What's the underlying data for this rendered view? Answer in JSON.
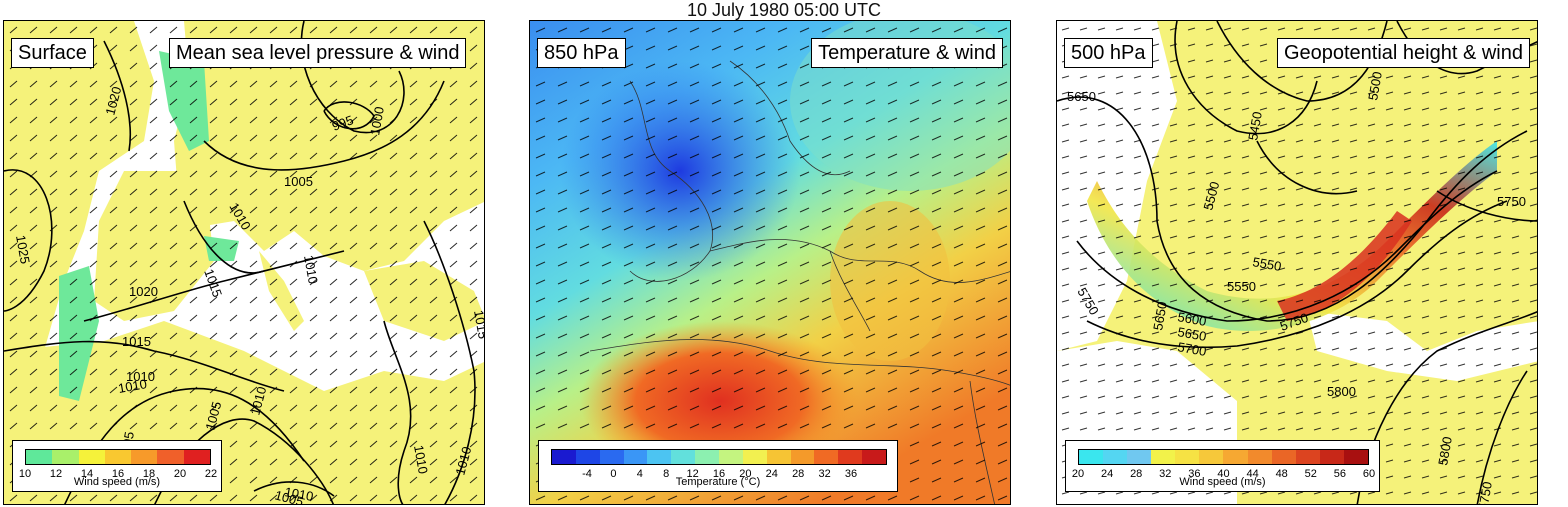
{
  "figure_title": "10 July 1980 05:00 UTC",
  "panels": [
    {
      "level": "Surface",
      "field": "Mean sea level pressure & wind",
      "contour_labels": [
        "1020",
        "995",
        "1000",
        "1005",
        "1010",
        "1010",
        "1025",
        "1015",
        "1020",
        "1015",
        "1010",
        "1010",
        "1005",
        "1005",
        "1010",
        "1010",
        "1015",
        "1010",
        "1005",
        "1010"
      ],
      "legend": {
        "title": "Wind speed (m/s)",
        "ticks": [
          "10",
          "12",
          "14",
          "16",
          "18",
          "20",
          "22"
        ],
        "colors": [
          "#5fe89a",
          "#a9f06a",
          "#f5f23a",
          "#f9c830",
          "#f79a2a",
          "#f0602a",
          "#e02020"
        ]
      }
    },
    {
      "level": "850 hPa",
      "field": "Temperature & wind",
      "legend": {
        "title": "Temperature (°C)",
        "ticks": [
          "-4",
          "0",
          "4",
          "8",
          "12",
          "16",
          "20",
          "24",
          "28",
          "32",
          "36"
        ],
        "colors": [
          "#1a1ad0",
          "#1e46e6",
          "#2a6af0",
          "#3a96f6",
          "#4cc4f2",
          "#62e0dc",
          "#8cf0b0",
          "#c4f480",
          "#f2f050",
          "#f6c434",
          "#f49a2a",
          "#f06a24",
          "#e03a1e",
          "#c81a1a"
        ]
      }
    },
    {
      "level": "500 hPa",
      "field": "Geopotential height & wind",
      "contour_labels": [
        "5650",
        "5450",
        "5500",
        "5550",
        "5500",
        "5650",
        "5750",
        "5750",
        "5550",
        "5600",
        "5650",
        "5700",
        "5750",
        "5800",
        "5800",
        "5750"
      ],
      "legend": {
        "title": "Wind speed (m/s)",
        "ticks": [
          "20",
          "24",
          "28",
          "32",
          "36",
          "40",
          "44",
          "48",
          "52",
          "56",
          "60"
        ],
        "colors": [
          "#3ae6ee",
          "#54d6f2",
          "#70c8f0",
          "#f2f24a",
          "#f6e244",
          "#f6c83a",
          "#f6a832",
          "#f28a2c",
          "#ea6626",
          "#dc4420",
          "#c82818",
          "#a81010"
        ]
      }
    }
  ]
}
